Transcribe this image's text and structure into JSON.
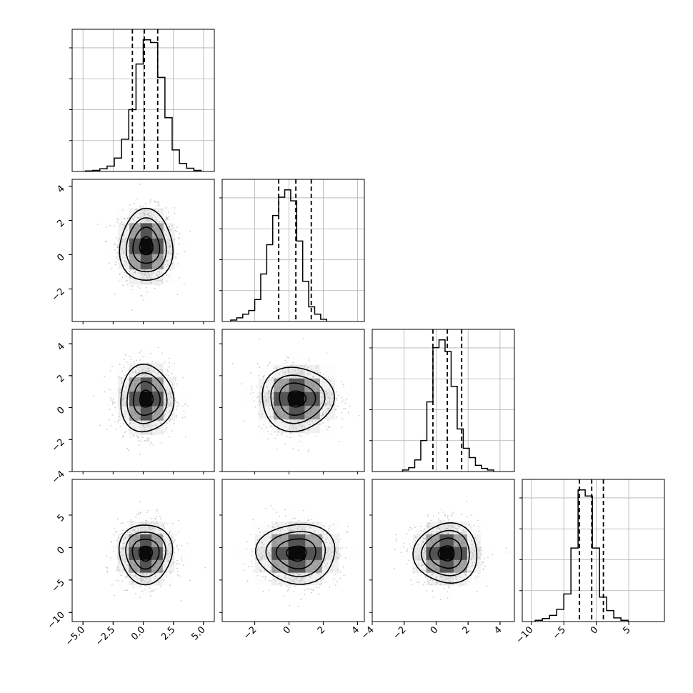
{
  "chart_data": {
    "type": "corner",
    "n_params": 4,
    "grid": true,
    "quantile_lines": "dashed",
    "params": [
      {
        "range": [
          -5.9,
          5.9
        ],
        "ticks": [
          -5.0,
          -2.5,
          0.0,
          2.5,
          5.0
        ],
        "tick_labels": [
          "−5.0",
          "−2.5",
          "0.0",
          "2.5",
          "5.0"
        ],
        "quantiles": [
          -0.9,
          0.1,
          1.2
        ],
        "hist": {
          "bin_start": -4.8,
          "bin_width": 0.6,
          "counts": [
            1,
            2,
            5,
            10,
            25,
            60,
            115,
            200,
            245,
            240,
            175,
            100,
            40,
            15,
            6,
            2
          ]
        }
      },
      {
        "range": [
          -3.9,
          4.4
        ],
        "ticks": [
          -2,
          0,
          2,
          4
        ],
        "tick_labels": [
          "−2",
          "0",
          "2",
          "4"
        ],
        "quantiles": [
          -0.6,
          0.4,
          1.3
        ],
        "hist": {
          "bin_start": -3.4,
          "bin_width": 0.35,
          "counts": [
            2,
            5,
            10,
            15,
            30,
            65,
            105,
            145,
            170,
            180,
            165,
            110,
            55,
            20,
            10,
            3
          ]
        }
      },
      {
        "range": [
          -4.0,
          4.9
        ],
        "ticks": [
          -4,
          -2,
          0,
          2,
          4
        ],
        "tick_labels": [
          "−4",
          "−2",
          "0",
          "2",
          "4"
        ],
        "quantiles": [
          -0.2,
          0.7,
          1.6
        ],
        "hist": {
          "bin_start": -2.1,
          "bin_width": 0.38,
          "counts": [
            2,
            5,
            15,
            40,
            90,
            160,
            170,
            155,
            110,
            55,
            30,
            18,
            8,
            4,
            2
          ]
        }
      },
      {
        "range": [
          -11.4,
          10.5
        ],
        "ticks": [
          -10,
          -5,
          0,
          5
        ],
        "tick_labels": [
          "−10",
          "−5",
          "0",
          "5"
        ],
        "quantiles": [
          -2.6,
          -0.7,
          1.1
        ],
        "hist": {
          "bin_start": -9.4,
          "bin_width": 1.1,
          "counts": [
            2,
            5,
            10,
            20,
            45,
            120,
            215,
            205,
            120,
            40,
            18,
            6,
            2
          ]
        }
      }
    ],
    "pairs": [
      {
        "x": 0,
        "y": 1,
        "center": [
          0.25,
          0.5
        ],
        "sd": [
          1.1,
          1.05
        ]
      },
      {
        "x": 0,
        "y": 2,
        "center": [
          0.25,
          0.55
        ],
        "sd": [
          1.1,
          1.05
        ]
      },
      {
        "x": 1,
        "y": 2,
        "center": [
          0.45,
          0.55
        ],
        "sd": [
          1.05,
          1.0
        ]
      },
      {
        "x": 0,
        "y": 3,
        "center": [
          0.2,
          -0.9
        ],
        "sd": [
          1.1,
          2.3
        ]
      },
      {
        "x": 1,
        "y": 3,
        "center": [
          0.45,
          -0.9
        ],
        "sd": [
          1.15,
          2.3
        ]
      },
      {
        "x": 2,
        "y": 3,
        "center": [
          0.65,
          -0.9
        ],
        "sd": [
          1.0,
          2.3
        ]
      }
    ]
  }
}
